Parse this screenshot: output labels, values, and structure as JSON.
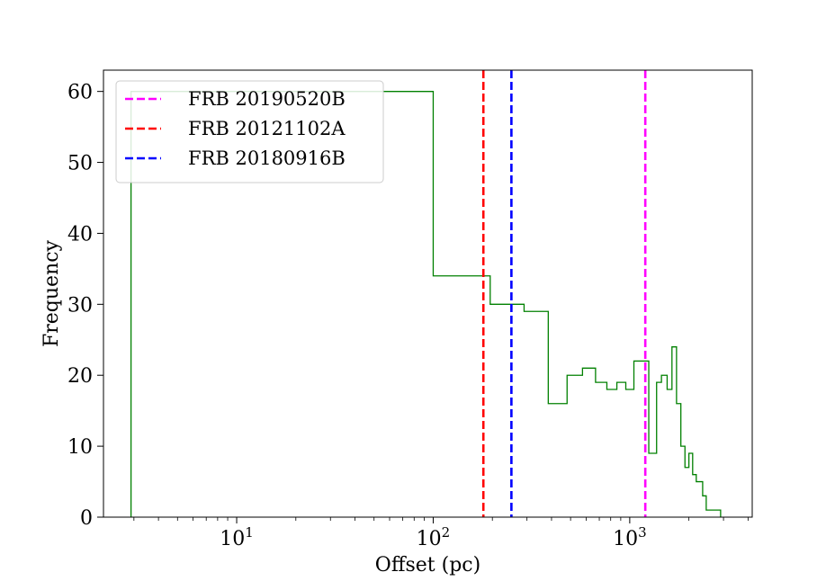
{
  "chart_data": {
    "type": "step-histogram",
    "title": "",
    "xlabel": "Offset (pc)",
    "ylabel": "Frequency",
    "xscale": "log",
    "xlim": [
      2.1,
      4200
    ],
    "ylim": [
      0,
      63
    ],
    "xticks": [
      {
        "value": 10,
        "base": "10",
        "exp": "1"
      },
      {
        "value": 100,
        "base": "10",
        "exp": "2"
      },
      {
        "value": 1000,
        "base": "10",
        "exp": "3"
      }
    ],
    "yticks": [
      0,
      10,
      20,
      30,
      40,
      50,
      60
    ],
    "histogram": {
      "color": "#008000",
      "bins": [
        {
          "x0": 2.9,
          "x1": 100,
          "count": 60
        },
        {
          "x0": 100,
          "x1": 195,
          "count": 34
        },
        {
          "x0": 195,
          "x1": 290,
          "count": 30
        },
        {
          "x0": 290,
          "x1": 385,
          "count": 29
        },
        {
          "x0": 385,
          "x1": 480,
          "count": 16
        },
        {
          "x0": 480,
          "x1": 575,
          "count": 20
        },
        {
          "x0": 575,
          "x1": 670,
          "count": 21
        },
        {
          "x0": 670,
          "x1": 765,
          "count": 19
        },
        {
          "x0": 765,
          "x1": 860,
          "count": 18
        },
        {
          "x0": 860,
          "x1": 955,
          "count": 19
        },
        {
          "x0": 955,
          "x1": 1050,
          "count": 18
        },
        {
          "x0": 1050,
          "x1": 1250,
          "count": 22
        },
        {
          "x0": 1250,
          "x1": 1370,
          "count": 9
        },
        {
          "x0": 1370,
          "x1": 1450,
          "count": 19
        },
        {
          "x0": 1450,
          "x1": 1550,
          "count": 20
        },
        {
          "x0": 1550,
          "x1": 1640,
          "count": 18
        },
        {
          "x0": 1640,
          "x1": 1730,
          "count": 24
        },
        {
          "x0": 1730,
          "x1": 1820,
          "count": 16
        },
        {
          "x0": 1820,
          "x1": 1910,
          "count": 10
        },
        {
          "x0": 1910,
          "x1": 2000,
          "count": 7
        },
        {
          "x0": 2000,
          "x1": 2090,
          "count": 9
        },
        {
          "x0": 2090,
          "x1": 2180,
          "count": 6
        },
        {
          "x0": 2180,
          "x1": 2350,
          "count": 5
        },
        {
          "x0": 2350,
          "x1": 2450,
          "count": 3
        },
        {
          "x0": 2450,
          "x1": 2900,
          "count": 1
        }
      ]
    },
    "vlines": [
      {
        "name": "FRB 20190520B",
        "x": 1200,
        "color": "#ff00ff"
      },
      {
        "name": "FRB 20121102A",
        "x": 180,
        "color": "#ff0000"
      },
      {
        "name": "FRB 20180916B",
        "x": 250,
        "color": "#0000ff"
      }
    ],
    "legend": {
      "placement": "upper-left"
    }
  }
}
